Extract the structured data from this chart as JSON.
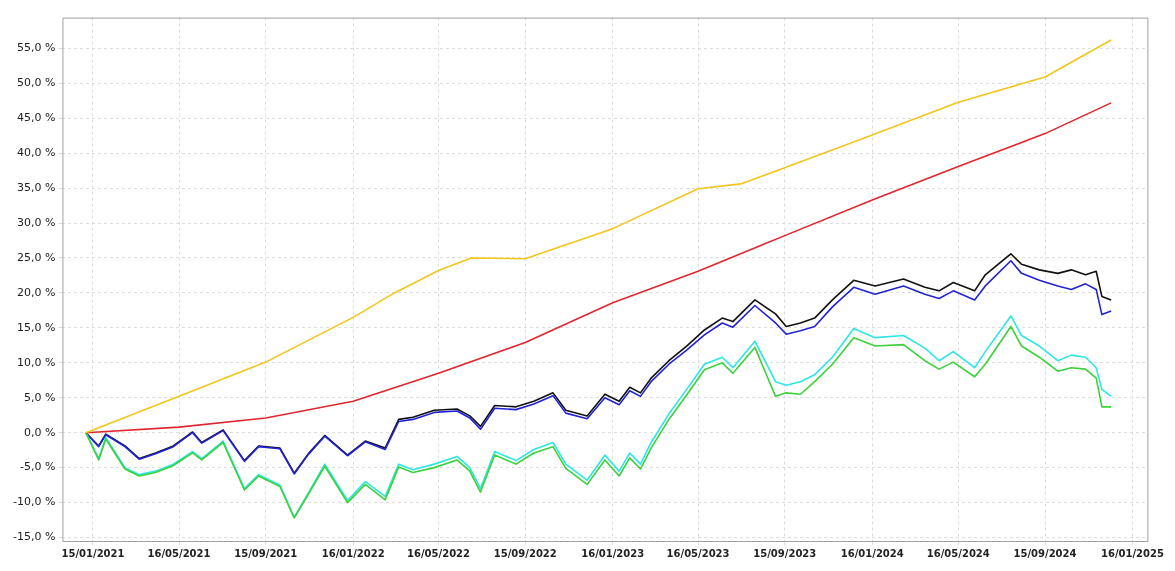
{
  "chart_data": {
    "type": "line",
    "grid": true,
    "legend": false,
    "xlim": [
      "2020-12-03",
      "2025-02-06"
    ],
    "xticks": [
      {
        "value": "2021-01-15",
        "label": "15/01/2021"
      },
      {
        "value": "2021-05-16",
        "label": "16/05/2021"
      },
      {
        "value": "2021-09-15",
        "label": "15/09/2021"
      },
      {
        "value": "2022-01-16",
        "label": "16/01/2022"
      },
      {
        "value": "2022-05-16",
        "label": "16/05/2022"
      },
      {
        "value": "2022-09-15",
        "label": "15/09/2022"
      },
      {
        "value": "2023-01-16",
        "label": "16/01/2023"
      },
      {
        "value": "2023-05-16",
        "label": "16/05/2023"
      },
      {
        "value": "2023-09-15",
        "label": "15/09/2023"
      },
      {
        "value": "2024-01-16",
        "label": "16/01/2024"
      },
      {
        "value": "2024-05-16",
        "label": "16/05/2024"
      },
      {
        "value": "2024-09-15",
        "label": "15/09/2024"
      },
      {
        "value": "2025-01-16",
        "label": "16/01/2025"
      }
    ],
    "ylim": [
      -15.5,
      59.4
    ],
    "yticks": [
      {
        "value": -15,
        "label": "-15,0 %"
      },
      {
        "value": -10,
        "label": "-10,0 %"
      },
      {
        "value": -5,
        "label": "-5,0 %"
      },
      {
        "value": 0,
        "label": "0,0 %"
      },
      {
        "value": 5,
        "label": "5,0 %"
      },
      {
        "value": 10,
        "label": "10,0 %"
      },
      {
        "value": 15,
        "label": "15,0 %"
      },
      {
        "value": 20,
        "label": "20,0 %"
      },
      {
        "value": 25,
        "label": "25,0 %"
      },
      {
        "value": 30,
        "label": "30,0 %"
      },
      {
        "value": 35,
        "label": "35,0 %"
      },
      {
        "value": 40,
        "label": "40,0 %"
      },
      {
        "value": 45,
        "label": "45,0 %"
      },
      {
        "value": 50,
        "label": "50,0 %"
      },
      {
        "value": 55,
        "label": "55,0 %"
      }
    ],
    "x": [
      "2021-01-05",
      "2021-01-23",
      "2021-02-02",
      "2021-03-01",
      "2021-03-21",
      "2021-04-13",
      "2021-05-08",
      "2021-06-04",
      "2021-06-17",
      "2021-07-17",
      "2021-08-16",
      "2021-09-05",
      "2021-10-05",
      "2021-10-25",
      "2021-11-14",
      "2021-12-07",
      "2022-01-08",
      "2022-02-02",
      "2022-03-02",
      "2022-03-21",
      "2022-04-10",
      "2022-05-10",
      "2022-06-11",
      "2022-06-29",
      "2022-07-14",
      "2022-08-03",
      "2022-09-02",
      "2022-09-27",
      "2022-10-24",
      "2022-11-11",
      "2022-12-11",
      "2023-01-05",
      "2023-01-25",
      "2023-02-09",
      "2023-02-24",
      "2023-03-11",
      "2023-04-05",
      "2023-04-30",
      "2023-05-25",
      "2023-06-19",
      "2023-07-04",
      "2023-08-04",
      "2023-09-02",
      "2023-09-17",
      "2023-10-07",
      "2023-10-27",
      "2023-11-21",
      "2023-12-21",
      "2024-01-20",
      "2024-02-29",
      "2024-03-30",
      "2024-04-19",
      "2024-05-09",
      "2024-06-08",
      "2024-06-23",
      "2024-07-29",
      "2024-08-13",
      "2024-09-07",
      "2024-10-03",
      "2024-10-22",
      "2024-11-11",
      "2024-11-26",
      "2024-12-04",
      "2024-12-17"
    ],
    "series": [
      {
        "color": "#f2c51c",
        "x": [
          "2021-01-05",
          "2021-05-16",
          "2021-09-15",
          "2022-01-16",
          "2022-03-15",
          "2022-05-16",
          "2022-07-01",
          "2022-09-15",
          "2023-01-16",
          "2023-05-16",
          "2023-07-15",
          "2023-09-15",
          "2024-01-16",
          "2024-05-16",
          "2024-09-15",
          "2024-12-17"
        ],
        "values": [
          0,
          5.2,
          10.1,
          16.5,
          20,
          23.2,
          25,
          24.9,
          29.2,
          34.9,
          35.6,
          37.9,
          42.6,
          47.3,
          50.9,
          56.2
        ]
      },
      {
        "color": "#e0262e",
        "x": [
          "2021-01-05",
          "2021-05-16",
          "2021-09-15",
          "2022-01-16",
          "2022-05-16",
          "2022-09-15",
          "2023-01-16",
          "2023-05-16",
          "2023-09-15",
          "2024-01-16",
          "2024-05-16",
          "2024-09-15",
          "2024-12-17"
        ],
        "values": [
          0,
          0.8,
          2.1,
          4.5,
          8.5,
          12.9,
          18.6,
          23.1,
          28.2,
          33.3,
          38.1,
          42.8,
          47.2
        ]
      },
      {
        "color": "#3bd13b",
        "values": [
          0,
          -3.9,
          -0.9,
          -5.2,
          -6.2,
          -5.7,
          -4.7,
          -2.9,
          -3.9,
          -1.4,
          -8.2,
          -6.2,
          -7.7,
          -12.2,
          -8.8,
          -4.8,
          -10,
          -7.4,
          -9.6,
          -4.9,
          -5.7,
          -5,
          -3.9,
          -5.5,
          -8.5,
          -3.2,
          -4.5,
          -2.9,
          -2,
          -5.1,
          -7.4,
          -3.9,
          -6.2,
          -3.6,
          -5.2,
          -2.2,
          1.9,
          5.4,
          9,
          10,
          8.5,
          12.2,
          5.2,
          5.7,
          5.5,
          7.3,
          9.8,
          13.6,
          12.4,
          12.6,
          10.3,
          9.1,
          10.1,
          8,
          9.8,
          15.2,
          12.4,
          10.8,
          8.8,
          9.3,
          9.1,
          7.8,
          3.7,
          3.7
        ]
      },
      {
        "color": "#2ee6e6",
        "values": [
          0,
          -3.7,
          -0.7,
          -5,
          -6,
          -5.5,
          -4.5,
          -2.7,
          -3.7,
          -1.2,
          -8,
          -6,
          -7.5,
          -12.1,
          -8.6,
          -4.5,
          -9.7,
          -7,
          -9.1,
          -4.5,
          -5.3,
          -4.5,
          -3.4,
          -5,
          -8,
          -2.7,
          -4,
          -2.4,
          -1.4,
          -4.5,
          -6.8,
          -3.2,
          -5.5,
          -2.9,
          -4.5,
          -1.4,
          2.7,
          6.2,
          9.8,
          10.8,
          9.3,
          13.1,
          7.3,
          6.8,
          7.3,
          8.3,
          10.8,
          14.9,
          13.6,
          13.9,
          12.1,
          10.3,
          11.6,
          9.3,
          11.6,
          16.7,
          13.9,
          12.4,
          10.3,
          11.1,
          10.8,
          9.3,
          6.2,
          5.2
        ]
      },
      {
        "color": "#2222d8",
        "values": [
          0,
          -2,
          -0.3,
          -2,
          -3.8,
          -3,
          -2,
          0,
          -1.5,
          0.3,
          -4.1,
          -2,
          -2.3,
          -5.9,
          -3.1,
          -0.5,
          -3.3,
          -1.3,
          -2.4,
          1.6,
          1.9,
          2.9,
          3.1,
          2.1,
          0.5,
          3.5,
          3.3,
          4.1,
          5.3,
          2.8,
          2,
          5,
          4,
          6,
          5.2,
          7.3,
          9.8,
          11.8,
          14,
          15.7,
          15.1,
          18.2,
          15.7,
          14.1,
          14.6,
          15.2,
          18,
          20.8,
          19.8,
          21,
          19.8,
          19.2,
          20.3,
          19,
          21,
          24.6,
          22.8,
          21.8,
          21,
          20.5,
          21.3,
          20.5,
          16.9,
          17.4
        ]
      },
      {
        "color": "#111111",
        "values": [
          0,
          -1.9,
          -0.2,
          -1.9,
          -3.7,
          -2.9,
          -1.9,
          0.1,
          -1.4,
          0.4,
          -4,
          -1.9,
          -2.2,
          -5.8,
          -3,
          -0.4,
          -3.2,
          -1.2,
          -2.2,
          1.9,
          2.2,
          3.2,
          3.4,
          2.4,
          0.9,
          3.9,
          3.7,
          4.5,
          5.7,
          3.2,
          2.4,
          5.5,
          4.5,
          6.5,
          5.7,
          7.8,
          10.3,
          12.4,
          14.7,
          16.4,
          15.9,
          19,
          17,
          15.2,
          15.7,
          16.4,
          19,
          21.8,
          21,
          22,
          20.8,
          20.3,
          21.5,
          20.3,
          22.6,
          25.6,
          24.1,
          23.3,
          22.8,
          23.3,
          22.6,
          23.1,
          19.5,
          19
        ]
      }
    ]
  }
}
